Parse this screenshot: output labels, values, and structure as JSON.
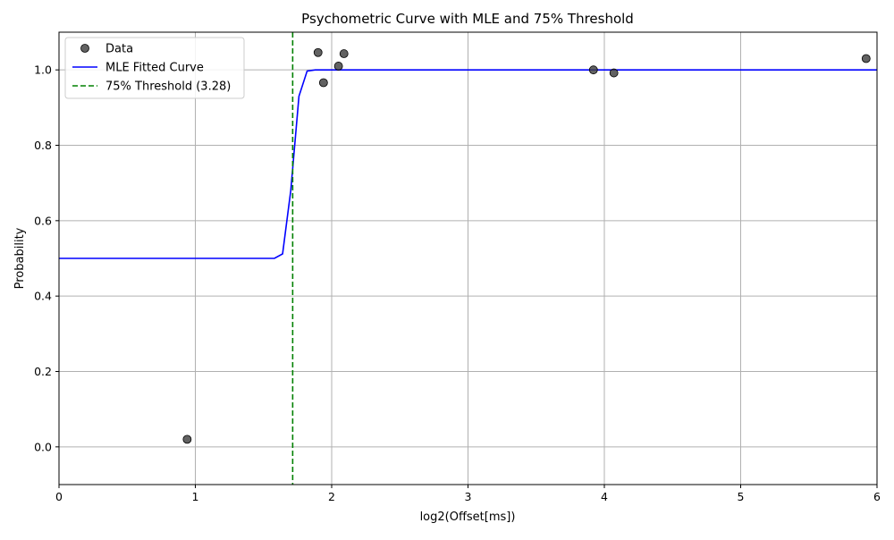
{
  "chart_data": {
    "type": "line",
    "title": "Psychometric Curve with MLE and 75% Threshold",
    "xlabel": "log2(Offset[ms])",
    "ylabel": "Probability",
    "xlim": [
      0,
      6
    ],
    "ylim": [
      -0.1,
      1.1
    ],
    "xticks": [
      0,
      1,
      2,
      3,
      4,
      5,
      6
    ],
    "xtick_labels": [
      "0",
      "1",
      "2",
      "3",
      "4",
      "5",
      "6"
    ],
    "yticks": [
      0.0,
      0.2,
      0.4,
      0.6,
      0.8,
      1.0
    ],
    "ytick_labels": [
      "0.0",
      "0.2",
      "0.4",
      "0.6",
      "0.8",
      "1.0"
    ],
    "grid": true,
    "legend_position": "top-left",
    "series": [
      {
        "name": "Data",
        "kind": "scatter",
        "color": "#404040",
        "x": [
          0.94,
          1.9,
          1.94,
          2.05,
          2.09,
          3.92,
          4.07,
          5.92
        ],
        "y": [
          0.02,
          1.046,
          0.966,
          1.01,
          1.043,
          1.0,
          0.992,
          1.03
        ]
      },
      {
        "name": "MLE Fitted Curve",
        "kind": "line",
        "color": "#0000ff",
        "x": [
          0,
          1.58,
          1.64,
          1.7,
          1.76,
          1.82,
          1.88,
          6.0
        ],
        "y": [
          0.5,
          0.5,
          0.512,
          0.68,
          0.93,
          0.997,
          1.0,
          1.0
        ]
      },
      {
        "name": "75% Threshold (3.28)",
        "kind": "vline",
        "color": "#008000",
        "x": 1.714
      }
    ]
  }
}
